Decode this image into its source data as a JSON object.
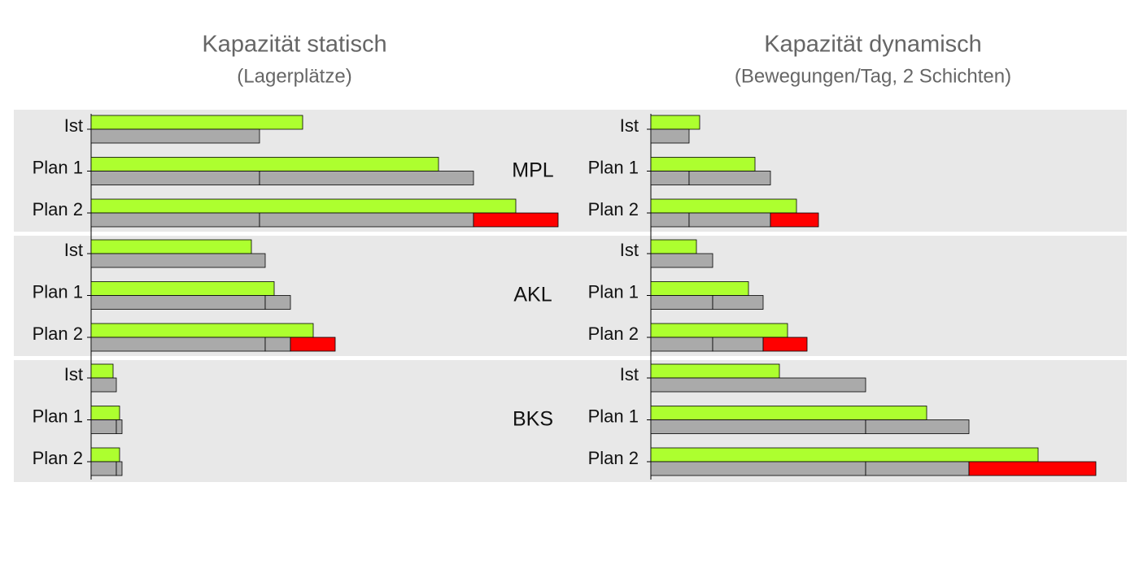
{
  "chart_data": [
    {
      "type": "bar",
      "title": "Kapazität  statisch",
      "subtitle": "(Lagerplätze)",
      "xlim": [
        0,
        600
      ],
      "demand_color": "#adff2f",
      "capacity_color": "#aaaaaa",
      "extension_color": "#ff0000",
      "groups": [
        {
          "rows": [
            {
              "label": "Ist",
              "demand": 260,
              "capacity": [
                207
              ]
            },
            {
              "label": "Plan 1",
              "demand": 427,
              "capacity": [
                207,
                263
              ]
            },
            {
              "label": "Plan 2",
              "demand": 522,
              "capacity": [
                207,
                263
              ],
              "extension": 104
            }
          ]
        },
        {
          "rows": [
            {
              "label": "Ist",
              "demand": 197,
              "capacity": [
                214
              ]
            },
            {
              "label": "Plan 1",
              "demand": 225,
              "capacity": [
                214,
                31
              ]
            },
            {
              "label": "Plan 2",
              "demand": 273,
              "capacity": [
                214,
                31
              ],
              "extension": 55
            }
          ]
        },
        {
          "rows": [
            {
              "label": "Ist",
              "demand": 27,
              "capacity": [
                31
              ]
            },
            {
              "label": "Plan 1",
              "demand": 35,
              "capacity": [
                31,
                7
              ]
            },
            {
              "label": "Plan 2",
              "demand": 35,
              "capacity": [
                31,
                7
              ]
            }
          ]
        }
      ]
    },
    {
      "type": "bar",
      "title": "Kapazität  dynamisch",
      "subtitle": "(Bewegungen/Tag, 2 Schichten)",
      "xlim": [
        0,
        600
      ],
      "demand_color": "#adff2f",
      "capacity_color": "#aaaaaa",
      "extension_color": "#ff0000",
      "groups": [
        {
          "rows": [
            {
              "label": "Ist",
              "demand": 60,
              "capacity": [
                47
              ]
            },
            {
              "label": "Plan 1",
              "demand": 128,
              "capacity": [
                47,
                100
              ]
            },
            {
              "label": "Plan 2",
              "demand": 179,
              "capacity": [
                47,
                100
              ],
              "extension": 59
            }
          ]
        },
        {
          "rows": [
            {
              "label": "Ist",
              "demand": 56,
              "capacity": [
                76
              ]
            },
            {
              "label": "Plan 1",
              "demand": 120,
              "capacity": [
                76,
                62
              ]
            },
            {
              "label": "Plan 2",
              "demand": 168,
              "capacity": [
                76,
                62
              ],
              "extension": 54
            }
          ]
        },
        {
          "rows": [
            {
              "label": "Ist",
              "demand": 158,
              "capacity": [
                264
              ]
            },
            {
              "label": "Plan 1",
              "demand": 339,
              "capacity": [
                264,
                127
              ]
            },
            {
              "label": "Plan 2",
              "demand": 476,
              "capacity": [
                264,
                127
              ],
              "extension": 156
            }
          ]
        }
      ]
    }
  ],
  "groups": [
    "MPL",
    "AKL",
    "BKS"
  ]
}
